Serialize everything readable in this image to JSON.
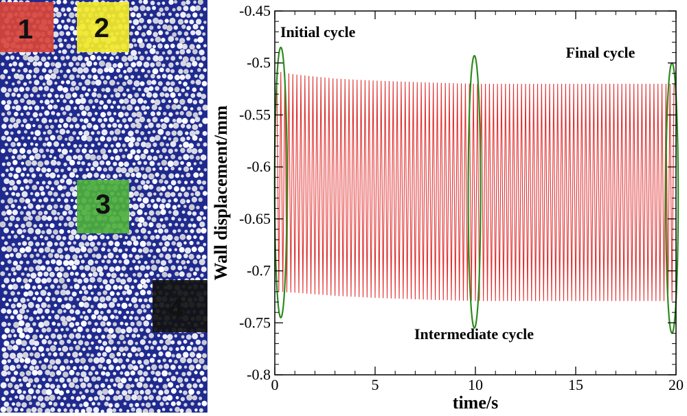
{
  "particle_panel": {
    "background_color": "#1f2a8f",
    "regions": [
      {
        "label": "1",
        "color": "#d8443a"
      },
      {
        "label": "2",
        "color": "#f2ea2a"
      },
      {
        "label": "3",
        "color": "#4caf3c"
      },
      {
        "label": "4",
        "color": "#111111"
      }
    ]
  },
  "chart_data": {
    "type": "line",
    "title": "",
    "xlabel": "time/s",
    "ylabel": "Wall displacement/mm",
    "xlim": [
      0,
      20
    ],
    "ylim": [
      -0.8,
      -0.45
    ],
    "xticks": [
      0,
      5,
      10,
      15,
      20
    ],
    "xtick_labels": [
      "0",
      "5",
      "10",
      "15",
      "20"
    ],
    "yticks": [
      -0.45,
      -0.5,
      -0.55,
      -0.6,
      -0.65,
      -0.7,
      -0.75,
      -0.8
    ],
    "ytick_labels": [
      "-0.45",
      "-0.5",
      "-0.55",
      "-0.6",
      "-0.65",
      "-0.7",
      "-0.75",
      "-0.8"
    ],
    "line_color": "#e03030",
    "series": [
      {
        "name": "Wall displacement",
        "t_start": 0.1,
        "t_end": 19.95,
        "period": 0.2,
        "upper_envelope": [
          [
            0.1,
            -0.508
          ],
          [
            1.0,
            -0.511
          ],
          [
            3.0,
            -0.515
          ],
          [
            5.0,
            -0.517
          ],
          [
            8.0,
            -0.519
          ],
          [
            10.0,
            -0.52
          ],
          [
            20.0,
            -0.52
          ]
        ],
        "lower_envelope": [
          [
            0.1,
            -0.72
          ],
          [
            1.0,
            -0.721
          ],
          [
            3.0,
            -0.724
          ],
          [
            5.0,
            -0.726
          ],
          [
            8.0,
            -0.728
          ],
          [
            10.0,
            -0.729
          ],
          [
            20.0,
            -0.729
          ]
        ]
      }
    ],
    "annotations": [
      {
        "text": "Initial cycle",
        "x_center": 0.3,
        "y_range": [
          -0.745,
          -0.485
        ]
      },
      {
        "text": "Intermediate cycle",
        "x_center": 9.95,
        "y_range": [
          -0.755,
          -0.493
        ]
      },
      {
        "text": "Final cycle",
        "x_center": 19.8,
        "y_range": [
          -0.76,
          -0.5
        ]
      }
    ],
    "ellipse_color": "#2e8b1e"
  }
}
